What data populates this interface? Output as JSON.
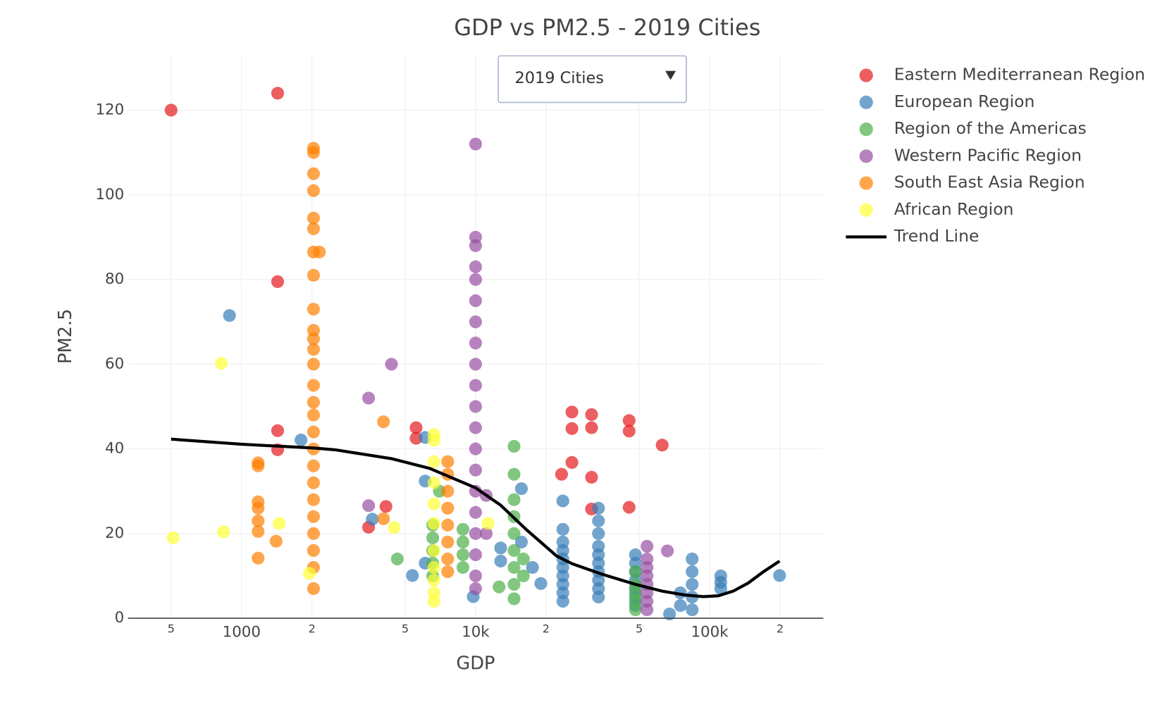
{
  "chart_data": {
    "type": "scatter",
    "title": "GDP vs PM2.5 - 2019 Cities",
    "x_label": "GDP",
    "y_label": "PM2.5",
    "menu": {
      "label": "2019 Cities"
    },
    "log_x": true,
    "grid": true,
    "xlim": [
      327,
      306000
    ],
    "ylim": [
      0,
      133
    ],
    "xticks": [
      {
        "value": 500,
        "label": "5"
      },
      1000,
      {
        "value": 2000,
        "label": "2"
      },
      {
        "value": 5000,
        "label": "5"
      },
      {
        "value": 10000,
        "label": "10k"
      },
      {
        "value": 20000,
        "label": "2"
      },
      {
        "value": 50000,
        "label": "5"
      },
      {
        "value": 100000,
        "label": "100k"
      },
      {
        "value": 200000,
        "label": "2"
      }
    ],
    "yticks": [
      0,
      20,
      40,
      60,
      80,
      100,
      120
    ],
    "series": [
      {
        "name": "Eastern Mediterranean Region",
        "color": "#e41a1c",
        "x": [
          500,
          1426,
          1426,
          1426,
          1426,
          3490,
          4140,
          5570,
          5570,
          25800,
          25800,
          25800,
          23300,
          31300,
          31300,
          31300,
          31300,
          45300,
          45300,
          45300,
          62700
        ],
        "values": [
          120,
          124,
          79.5,
          44.3,
          39.8,
          21.5,
          26.4,
          45,
          42.5,
          48.7,
          44.8,
          36.8,
          34,
          48.1,
          45,
          33.3,
          25.8,
          46.7,
          44.2,
          26.2,
          40.9
        ]
      },
      {
        "name": "European Region",
        "color": "#377eb8",
        "x": [
          888,
          1795,
          3620,
          5370,
          6090,
          6090,
          6090,
          9770,
          12800,
          12800,
          15700,
          15700,
          17500,
          19000,
          23600,
          23600,
          23600,
          23600,
          23600,
          23600,
          23600,
          23600,
          23600,
          23600,
          33500,
          33500,
          33500,
          33500,
          33500,
          33500,
          33500,
          33500,
          33500,
          33500,
          48200,
          48200,
          48200,
          48200,
          48200,
          48200,
          48200,
          67400,
          75000,
          75000,
          84200,
          84200,
          84200,
          84200,
          84200,
          111600,
          111600,
          111600,
          199000
        ],
        "values": [
          71.5,
          42.1,
          23.4,
          10.1,
          42.7,
          32.4,
          13,
          5.1,
          16.6,
          13.5,
          30.6,
          18,
          12,
          8.2,
          4,
          6,
          8,
          10,
          12,
          14,
          16,
          18,
          21,
          27.7,
          5,
          7,
          9,
          11,
          13,
          15,
          17,
          20,
          23,
          26,
          3,
          5,
          7,
          9,
          11,
          13,
          15,
          1,
          3,
          6,
          2,
          5,
          8,
          11,
          14,
          7,
          8.5,
          10,
          10.1
        ]
      },
      {
        "name": "Region of the Americas",
        "color": "#4daf4a",
        "x": [
          4630,
          6560,
          6560,
          6560,
          6560,
          6560,
          7000,
          8830,
          8830,
          8830,
          8830,
          12600,
          14600,
          14600,
          14600,
          14600,
          14600,
          14600,
          14600,
          14600,
          14600,
          16000,
          16000,
          48200,
          48200,
          48200,
          48200,
          48200
        ],
        "values": [
          14,
          10,
          13,
          16,
          19,
          22,
          30,
          12,
          15,
          18,
          21,
          7.4,
          4.6,
          8,
          12,
          16,
          20,
          24,
          28,
          34,
          40.6,
          10,
          14,
          2,
          4,
          6,
          8,
          11
        ]
      },
      {
        "name": "Western Pacific Region",
        "color": "#984ea3",
        "x": [
          3490,
          3490,
          4370,
          10000,
          10000,
          10000,
          10000,
          10000,
          10000,
          10000,
          10000,
          10000,
          10000,
          10000,
          10000,
          10000,
          10000,
          10000,
          10000,
          10000,
          10000,
          10000,
          10000,
          11100,
          11100,
          54000,
          54000,
          54000,
          54000,
          54000,
          54000,
          54000,
          54000,
          66000
        ],
        "values": [
          26.6,
          52,
          60,
          7,
          10,
          15,
          20,
          25,
          30,
          35,
          40,
          45,
          50,
          55,
          60,
          65,
          70,
          75,
          80,
          83,
          88,
          90,
          112,
          29,
          20,
          2,
          4,
          6,
          8,
          10,
          12,
          14,
          17,
          15.9
        ]
      },
      {
        "name": "South East Asia Region",
        "color": "#ff7f00",
        "x": [
          1177,
          1177,
          1177,
          1177,
          1177,
          1177,
          1177,
          1405,
          2030,
          2030,
          2030,
          2030,
          2030,
          2030,
          2030,
          2030,
          2030,
          2030,
          2030,
          2030,
          2030,
          2030,
          2030,
          2030,
          2030,
          2030,
          2030,
          2030,
          2030,
          2030,
          2030,
          2030,
          2030,
          2030,
          2150,
          4040,
          4040,
          7600,
          7600,
          7600,
          7600,
          7600,
          7600,
          7600,
          7600
        ],
        "values": [
          14.2,
          20.5,
          23,
          26,
          27.5,
          36,
          36.7,
          18.2,
          7,
          12,
          16,
          20,
          24,
          28,
          32,
          36,
          40,
          44,
          48,
          51,
          55,
          60,
          63.5,
          66,
          68,
          73,
          81,
          86.5,
          92,
          94.5,
          101,
          105,
          110,
          111,
          86.5,
          46.4,
          23.5,
          11,
          14,
          18,
          22,
          26,
          30,
          34,
          37
        ]
      },
      {
        "name": "African Region",
        "color": "#ffff33",
        "x": [
          510,
          819,
          837,
          1447,
          1950,
          4490,
          6640,
          6640,
          6640,
          6640,
          6640,
          6640,
          6640,
          6640,
          6640,
          6640,
          6640,
          11300
        ],
        "values": [
          19,
          60.2,
          20.4,
          22.4,
          10.6,
          21.4,
          4,
          6,
          9,
          12,
          16,
          22.4,
          27,
          32,
          37,
          42,
          43.4,
          22.4
        ]
      },
      {
        "name": "Trend Line",
        "color": "#000000",
        "type": "line",
        "x": [
          500,
          1000,
          2030,
          2500,
          4370,
          6360,
          10000,
          12800,
          16500,
          22200,
          25800,
          34700,
          48200,
          62700,
          78300,
          93900,
          109000,
          126000,
          146000,
          170000,
          199000
        ],
        "values": [
          42.3,
          41.1,
          40.2,
          39.8,
          37.7,
          35.4,
          30.8,
          26.7,
          20.9,
          14.7,
          12.9,
          10.4,
          8,
          6.4,
          5.5,
          5.1,
          5.3,
          6.4,
          8.3,
          11,
          13.5
        ]
      }
    ]
  }
}
